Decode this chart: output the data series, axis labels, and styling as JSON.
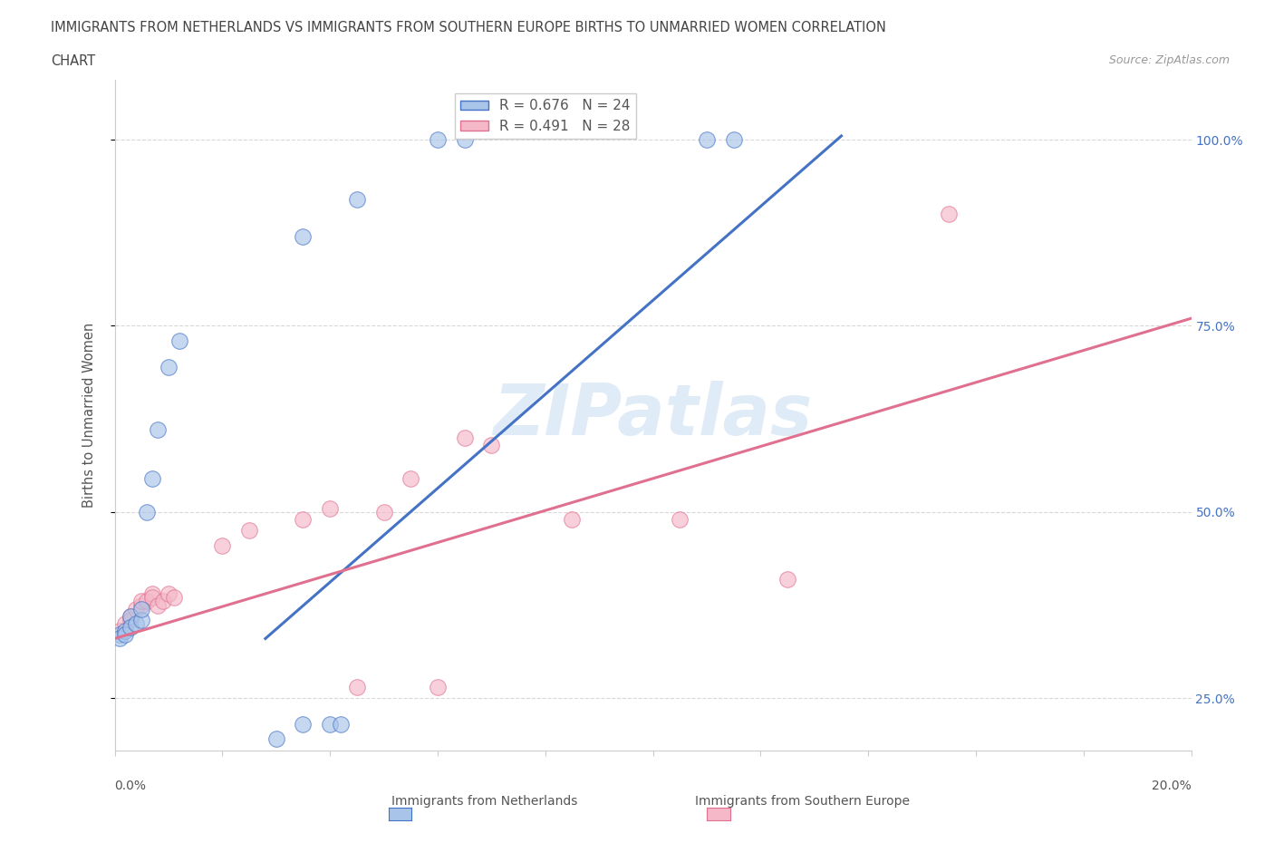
{
  "title_line1": "IMMIGRANTS FROM NETHERLANDS VS IMMIGRANTS FROM SOUTHERN EUROPE BIRTHS TO UNMARRIED WOMEN CORRELATION",
  "title_line2": "CHART",
  "source": "Source: ZipAtlas.com",
  "ylabel": "Births to Unmarried Women",
  "ytick_values": [
    0.25,
    0.5,
    0.75,
    1.0
  ],
  "xlim": [
    0.0,
    0.2
  ],
  "ylim": [
    0.18,
    1.08
  ],
  "netherlands_scatter": {
    "color": "#a8c4e8",
    "line_color": "#4472c4",
    "points": [
      [
        0.001,
        0.335
      ],
      [
        0.001,
        0.33
      ],
      [
        0.002,
        0.34
      ],
      [
        0.002,
        0.335
      ],
      [
        0.003,
        0.36
      ],
      [
        0.003,
        0.345
      ],
      [
        0.004,
        0.35
      ],
      [
        0.005,
        0.355
      ],
      [
        0.005,
        0.37
      ],
      [
        0.006,
        0.5
      ],
      [
        0.007,
        0.545
      ],
      [
        0.008,
        0.61
      ],
      [
        0.01,
        0.695
      ],
      [
        0.012,
        0.73
      ],
      [
        0.03,
        0.195
      ],
      [
        0.035,
        0.215
      ],
      [
        0.04,
        0.215
      ],
      [
        0.042,
        0.215
      ],
      [
        0.06,
        1.0
      ],
      [
        0.065,
        1.0
      ],
      [
        0.11,
        1.0
      ],
      [
        0.115,
        1.0
      ],
      [
        0.035,
        0.87
      ],
      [
        0.045,
        0.92
      ]
    ],
    "trend_x": [
      0.028,
      0.135
    ],
    "trend_y": [
      0.33,
      1.005
    ],
    "marker_size": 160
  },
  "southern_scatter": {
    "color": "#f4b8c8",
    "line_color": "#e07090",
    "points": [
      [
        0.001,
        0.34
      ],
      [
        0.002,
        0.35
      ],
      [
        0.003,
        0.36
      ],
      [
        0.003,
        0.355
      ],
      [
        0.004,
        0.37
      ],
      [
        0.005,
        0.375
      ],
      [
        0.005,
        0.38
      ],
      [
        0.006,
        0.38
      ],
      [
        0.007,
        0.39
      ],
      [
        0.007,
        0.385
      ],
      [
        0.008,
        0.375
      ],
      [
        0.009,
        0.38
      ],
      [
        0.01,
        0.39
      ],
      [
        0.011,
        0.385
      ],
      [
        0.02,
        0.455
      ],
      [
        0.025,
        0.475
      ],
      [
        0.035,
        0.49
      ],
      [
        0.04,
        0.505
      ],
      [
        0.05,
        0.5
      ],
      [
        0.055,
        0.545
      ],
      [
        0.065,
        0.6
      ],
      [
        0.07,
        0.59
      ],
      [
        0.085,
        0.49
      ],
      [
        0.105,
        0.49
      ],
      [
        0.045,
        0.265
      ],
      [
        0.06,
        0.265
      ],
      [
        0.125,
        0.41
      ],
      [
        0.155,
        0.9
      ]
    ],
    "trend_x": [
      0.0,
      0.2
    ],
    "trend_y": [
      0.33,
      0.76
    ],
    "marker_size": 160
  },
  "watermark": "ZIPatlas",
  "background_color": "#ffffff",
  "grid_color": "#d8d8d8"
}
